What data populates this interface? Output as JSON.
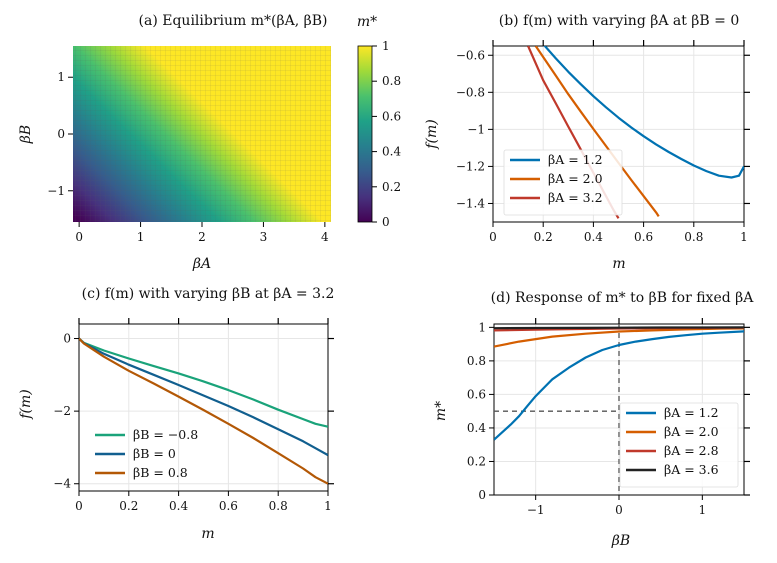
{
  "chart_data": [
    {
      "panel": "a",
      "type": "heatmap",
      "title": "(a) Equilibrium m*(βA, βB)",
      "xlabel": "βA",
      "ylabel": "βB",
      "xlim": [
        -0.1,
        4.1
      ],
      "ylim": [
        -1.55,
        1.55
      ],
      "xticks": [
        0,
        1,
        2,
        3,
        4
      ],
      "yticks": [
        -1,
        0,
        1
      ],
      "xtick_labels": [
        "0",
        "1",
        "2",
        "3",
        "4"
      ],
      "ytick_labels": [
        "−1",
        "0",
        "1"
      ],
      "colorbar": {
        "label": "m*",
        "range": [
          0,
          1
        ],
        "ticks": [
          0,
          0.2,
          0.4,
          0.6,
          0.8,
          1
        ],
        "tick_labels": [
          "0",
          "0.2",
          "0.4",
          "0.6",
          "0.8",
          "1"
        ],
        "colors": [
          "#440154",
          "#46327e",
          "#365c8d",
          "#277f8e",
          "#1fa187",
          "#4ac16d",
          "#a0da39",
          "#fde725"
        ]
      }
    },
    {
      "panel": "b",
      "type": "line",
      "title": "(b) f(m) with varying βA at βB = 0",
      "xlabel": "m",
      "ylabel": "f(m)",
      "xlim": [
        0,
        1
      ],
      "ylim": [
        -1.5,
        -0.55
      ],
      "xticks": [
        0,
        0.2,
        0.4,
        0.6,
        0.8,
        1
      ],
      "xtick_labels": [
        "0",
        "0.2",
        "0.4",
        "0.6",
        "0.8",
        "1"
      ],
      "yticks": [
        -1.4,
        -1.2,
        -1.0,
        -0.8,
        -0.6
      ],
      "ytick_labels": [
        "−1.4",
        "−1.2",
        "−1",
        "−0.8",
        "−0.6"
      ],
      "legend_position": "lower-left",
      "series": [
        {
          "name": "βA = 1.2",
          "color": "#0072b2",
          "x": [
            0.2,
            0.25,
            0.3,
            0.35,
            0.4,
            0.45,
            0.5,
            0.55,
            0.6,
            0.65,
            0.7,
            0.75,
            0.8,
            0.85,
            0.9,
            0.95,
            0.98,
            1.0
          ],
          "y": [
            -0.54,
            -0.617,
            -0.689,
            -0.757,
            -0.821,
            -0.881,
            -0.937,
            -0.989,
            -1.037,
            -1.081,
            -1.122,
            -1.16,
            -1.195,
            -1.225,
            -1.25,
            -1.26,
            -1.25,
            -1.2
          ]
        },
        {
          "name": "βA = 2.0",
          "color": "#d55e00",
          "x": [
            0.17,
            0.25,
            0.3,
            0.35,
            0.4,
            0.45,
            0.5,
            0.55,
            0.6,
            0.65,
            0.66
          ],
          "y": [
            -0.55,
            -0.71,
            -0.81,
            -0.905,
            -0.998,
            -1.09,
            -1.181,
            -1.271,
            -1.36,
            -1.448,
            -1.47
          ]
        },
        {
          "name": "βA = 3.2",
          "color": "#c0392b",
          "x": [
            0.14,
            0.2,
            0.25,
            0.3,
            0.35,
            0.4,
            0.45,
            0.48,
            0.5
          ],
          "y": [
            -0.55,
            -0.735,
            -0.86,
            -0.985,
            -1.11,
            -1.235,
            -1.36,
            -1.435,
            -1.48
          ]
        }
      ]
    },
    {
      "panel": "c",
      "type": "line",
      "title": "(c) f(m) with varying βB at βA = 3.2",
      "xlabel": "m",
      "ylabel": "f(m)",
      "xlim": [
        0,
        1
      ],
      "ylim": [
        -4.2,
        0.4
      ],
      "xticks": [
        0,
        0.2,
        0.4,
        0.6,
        0.8,
        1
      ],
      "xtick_labels": [
        "0",
        "0.2",
        "0.4",
        "0.6",
        "0.8",
        "1"
      ],
      "yticks": [
        -4,
        -2,
        0
      ],
      "ytick_labels": [
        "−4",
        "−2",
        "0"
      ],
      "legend_position": "lower-left",
      "series": [
        {
          "name": "βB = −0.8",
          "color": "#1aa37a",
          "x": [
            0,
            0.02,
            0.1,
            0.2,
            0.3,
            0.4,
            0.5,
            0.6,
            0.7,
            0.8,
            0.9,
            0.95,
            1.0
          ],
          "y": [
            0,
            -0.12,
            -0.33,
            -0.55,
            -0.76,
            -0.96,
            -1.18,
            -1.42,
            -1.68,
            -1.96,
            -2.22,
            -2.35,
            -2.43
          ]
        },
        {
          "name": "βB = 0",
          "color": "#115f8f",
          "x": [
            0,
            0.02,
            0.1,
            0.2,
            0.3,
            0.4,
            0.5,
            0.6,
            0.7,
            0.8,
            0.9,
            0.95,
            1.0
          ],
          "y": [
            0,
            -0.13,
            -0.42,
            -0.72,
            -1.0,
            -1.28,
            -1.57,
            -1.86,
            -2.17,
            -2.5,
            -2.83,
            -3.02,
            -3.21
          ]
        },
        {
          "name": "βB = 0.8",
          "color": "#b35806",
          "x": [
            0,
            0.02,
            0.1,
            0.2,
            0.3,
            0.4,
            0.5,
            0.6,
            0.7,
            0.8,
            0.9,
            0.95,
            1.0
          ],
          "y": [
            0,
            -0.14,
            -0.5,
            -0.89,
            -1.24,
            -1.6,
            -1.97,
            -2.35,
            -2.74,
            -3.16,
            -3.58,
            -3.82,
            -4.0
          ]
        }
      ]
    },
    {
      "panel": "d",
      "type": "line",
      "title": "(d) Response of m* to βB for fixed βA",
      "xlabel": "βB",
      "ylabel": "m*",
      "xlim": [
        -1.5,
        1.5
      ],
      "ylim": [
        0,
        1.02
      ],
      "xticks": [
        -1,
        0,
        1
      ],
      "xtick_labels": [
        "−1",
        "0",
        "1"
      ],
      "yticks": [
        0,
        0.2,
        0.4,
        0.6,
        0.8,
        1
      ],
      "ytick_labels": [
        "0",
        "0.2",
        "0.4",
        "0.6",
        "0.8",
        "1"
      ],
      "reference_lines": {
        "hline_y": 0.5,
        "vline_x": 0
      },
      "legend_position": "lower-right",
      "series": [
        {
          "name": "βA = 1.2",
          "color": "#0072b2",
          "x": [
            -1.5,
            -1.3,
            -1.2,
            -1.1,
            -1.0,
            -0.8,
            -0.6,
            -0.4,
            -0.2,
            0,
            0.2,
            0.4,
            0.6,
            0.8,
            1.0,
            1.2,
            1.5
          ],
          "y": [
            0.33,
            0.42,
            0.47,
            0.53,
            0.59,
            0.69,
            0.76,
            0.82,
            0.865,
            0.895,
            0.915,
            0.93,
            0.943,
            0.953,
            0.962,
            0.968,
            0.976
          ]
        },
        {
          "name": "βA = 2.0",
          "color": "#d55e00",
          "x": [
            -1.5,
            -1.2,
            -0.8,
            -0.4,
            0,
            0.4,
            0.8,
            1.2,
            1.5
          ],
          "y": [
            0.885,
            0.915,
            0.945,
            0.962,
            0.975,
            0.982,
            0.988,
            0.992,
            0.994
          ]
        },
        {
          "name": "βA = 2.8",
          "color": "#c0392b",
          "x": [
            -1.5,
            -1.0,
            -0.5,
            0,
            0.5,
            1.0,
            1.5
          ],
          "y": [
            0.982,
            0.986,
            0.99,
            0.993,
            0.995,
            0.997,
            0.998
          ]
        },
        {
          "name": "βA = 3.6",
          "color": "#222222",
          "x": [
            -1.5,
            -1.0,
            -0.5,
            0,
            0.5,
            1.0,
            1.5
          ],
          "y": [
            0.995,
            0.996,
            0.997,
            0.998,
            0.999,
            0.999,
            1.0
          ]
        }
      ]
    }
  ]
}
